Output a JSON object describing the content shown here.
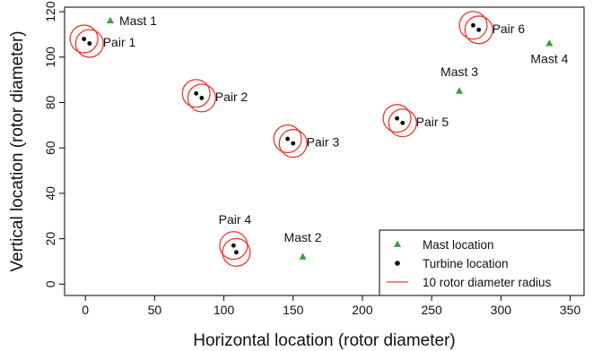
{
  "chart_data": {
    "type": "scatter",
    "title": "",
    "xlabel": "Horizontal location (rotor diameter)",
    "ylabel": "Vertical location (rotor diameter)",
    "xlim": [
      -15,
      360
    ],
    "ylim": [
      -5,
      122
    ],
    "x_ticks": [
      0,
      50,
      100,
      150,
      200,
      250,
      300,
      350
    ],
    "y_ticks": [
      0,
      20,
      40,
      60,
      80,
      100,
      120
    ],
    "grid": false,
    "legend_position": "bottom-right",
    "circle_radius_rotor_diameters": 10,
    "series": [
      {
        "name": "Mast location",
        "marker": "triangle",
        "color": "#3aa33a",
        "points": [
          {
            "label": "Mast 1",
            "x": 18,
            "y": 116
          },
          {
            "label": "Mast 2",
            "x": 157,
            "y": 12
          },
          {
            "label": "Mast 3",
            "x": 270,
            "y": 85
          },
          {
            "label": "Mast 4",
            "x": 335,
            "y": 106
          }
        ]
      },
      {
        "name": "Turbine location",
        "marker": "dot",
        "color": "#000000",
        "pairs": [
          {
            "label": "Pair 1",
            "turbines": [
              {
                "x": -1,
                "y": 108
              },
              {
                "x": 3,
                "y": 106
              }
            ]
          },
          {
            "label": "Pair 2",
            "turbines": [
              {
                "x": 80,
                "y": 84
              },
              {
                "x": 84,
                "y": 82
              }
            ]
          },
          {
            "label": "Pair 3",
            "turbines": [
              {
                "x": 146,
                "y": 64
              },
              {
                "x": 150,
                "y": 62
              }
            ]
          },
          {
            "label": "Pair 4",
            "turbines": [
              {
                "x": 107,
                "y": 17
              },
              {
                "x": 109,
                "y": 14
              }
            ]
          },
          {
            "label": "Pair 5",
            "turbines": [
              {
                "x": 225,
                "y": 73
              },
              {
                "x": 229,
                "y": 71
              }
            ]
          },
          {
            "label": "Pair 6",
            "turbines": [
              {
                "x": 280,
                "y": 114
              },
              {
                "x": 284,
                "y": 112
              }
            ]
          }
        ]
      },
      {
        "name": "10 rotor diameter radius",
        "marker": "line",
        "color": "#e8392c"
      }
    ]
  }
}
